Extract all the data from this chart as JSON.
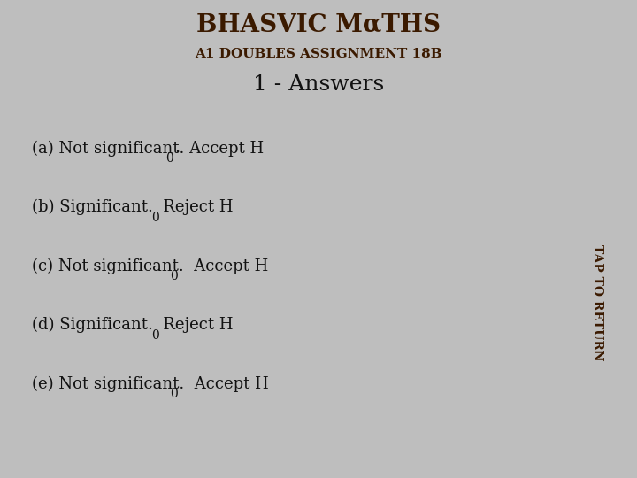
{
  "title_line1": "BHASVIC MαTHS",
  "title_line2": "A1 DOUBLES ASSIGNMENT 18B",
  "subtitle": "1 - Answers",
  "header_bg": "#F5A800",
  "outer_bg": "#BEBEBE",
  "content_bg": "#FFFFFF",
  "sidebar_bg": "#F5A800",
  "sidebar_text": "TAP TO RETURN",
  "answers": [
    {
      "label": "(a)",
      "text": "Not significant. Accept H",
      "sub": "0",
      "suffix": "."
    },
    {
      "label": "(b)",
      "text": "Significant.  Reject H",
      "sub": "0",
      "suffix": ""
    },
    {
      "label": "(c)",
      "text": "Not significant.  Accept H",
      "sub": "0",
      "suffix": ""
    },
    {
      "label": "(d)",
      "text": "Significant.  Reject H",
      "sub": "0",
      "suffix": ""
    },
    {
      "label": "(e)",
      "text": "Not significant.  Accept H",
      "sub": "0",
      "suffix": ""
    }
  ],
  "title_fontsize": 20,
  "subtitle_fontsize": 18,
  "answer_fontsize": 13
}
